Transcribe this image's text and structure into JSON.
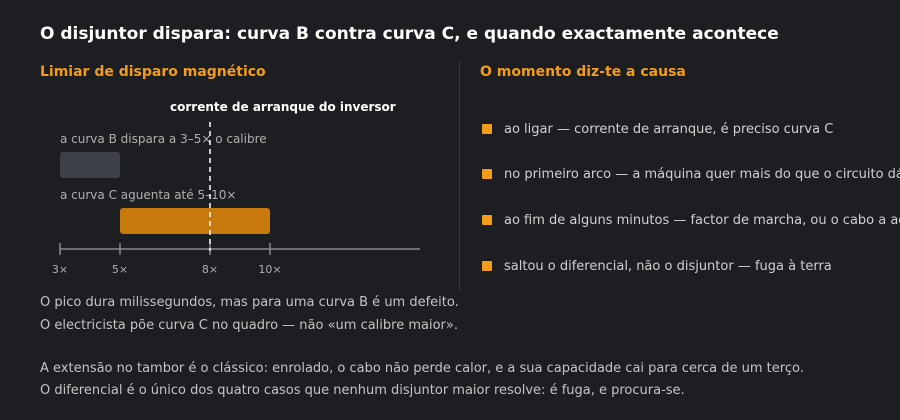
{
  "title": "O disjuntor dispara: curva B contra curva C, e quando exactamente acontece",
  "left_panel": {
    "heading": "Limiar de disparo magnético",
    "marker_label": "corrente de arranque do inversor",
    "curve_b_label": "a curva B dispara a 3–5× o calibre",
    "curve_c_label": "a curva C aguenta até 5–10×",
    "ticks": [
      "3×",
      "5×",
      "8×",
      "10×"
    ]
  },
  "chart_data": {
    "type": "bar",
    "categories": [
      "a curva B dispara a 3–5× o calibre",
      "a curva C aguenta até 5–10×"
    ],
    "ranges": [
      [
        3,
        5
      ],
      [
        5,
        10
      ]
    ],
    "marker": 8,
    "ticks": [
      3,
      5,
      8,
      10
    ],
    "colors": {
      "curve_b": "#3e4047",
      "curve_c": "#c77a0b",
      "axis": "#8a8a8a",
      "marker": "#ffffff"
    }
  },
  "right_panel": {
    "heading": "O momento diz-te a causa",
    "items": [
      "ao ligar — corrente de arranque, é preciso curva C",
      "no primeiro arco — a máquina quer mais do que o circuito dá",
      "ao fim de alguns minutos — factor de marcha, ou o cabo a aquecer",
      "saltou o diferencial, não o disjuntor — fuga à terra"
    ]
  },
  "notes": [
    "O pico dura milissegundos, mas para uma curva B é um defeito.",
    "O electricista põe curva C no quadro — não «um calibre maior».",
    "A extensão no tambor é o clássico: enrolado, o cabo não perde calor, e a sua capacidade cai para cerca de um terço.",
    "O diferencial é o único dos quatro casos que nenhum disjuntor maior resolve: é fuga, e procura-se."
  ],
  "colors": {
    "accent": "#f39c1a",
    "background": "#1c1e22"
  }
}
